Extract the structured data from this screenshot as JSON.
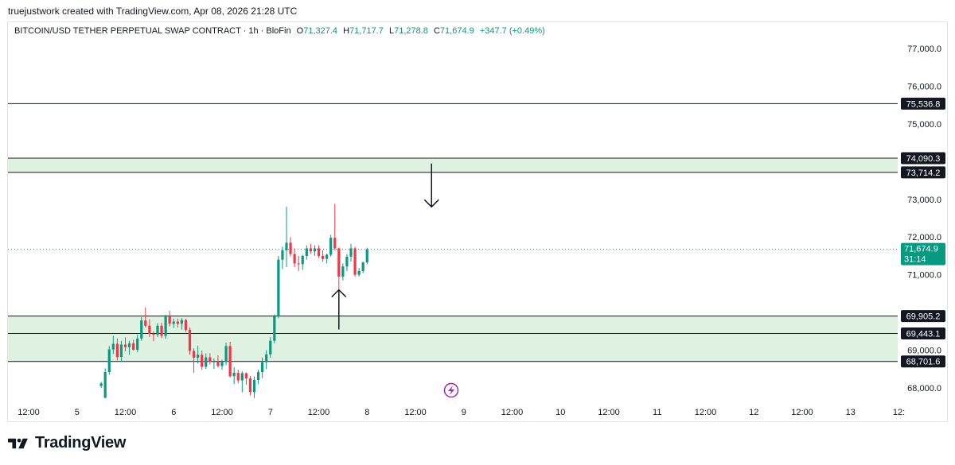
{
  "header": {
    "attribution": "truejustwork created with TradingView.com, Apr 08, 2026 21:28 UTC"
  },
  "legend": {
    "symbol": "BITCOIN/USD TETHER PERPETUAL SWAP CONTRACT · 1h · BloFin",
    "o_label": "O",
    "o_value": "71,327.4",
    "h_label": "H",
    "h_value": "71,717.7",
    "l_label": "L",
    "l_value": "71,278.8",
    "c_label": "C",
    "c_value": "71,674.9",
    "change": "+347.7 (+0.49%)"
  },
  "brand": {
    "name": "TradingView"
  },
  "colors": {
    "up": "#089981",
    "down": "#f23645",
    "zone": "#dff2e1",
    "line": "#131722",
    "accent": "#9c27b0"
  },
  "icons": {
    "replay": "flash-icon",
    "logo": "tradingview-logo-icon"
  },
  "chart_data": {
    "type": "candlestick",
    "ylim": [
      67600,
      77700
    ],
    "y_ticks": [
      "77,000.0",
      "76,000.0",
      "75,000.0",
      "73,000.0",
      "72,000.0",
      "71,000.0",
      "69,000.0",
      "68,000.0"
    ],
    "y_tick_values": [
      77000,
      76000,
      75000,
      73000,
      72000,
      71000,
      69000,
      68000
    ],
    "x_tick_labels": [
      "12:00",
      "5",
      "12:00",
      "6",
      "12:00",
      "7",
      "12:00",
      "8",
      "12:00",
      "9",
      "12:00",
      "10",
      "12:00",
      "11",
      "12:00",
      "12",
      "12:00",
      "13",
      "12:"
    ],
    "levels": [
      {
        "label": "75,536.8",
        "value": 75536.8
      },
      {
        "label": "74,090.3",
        "value": 74090.3
      },
      {
        "label": "73,714.2",
        "value": 73714.2
      },
      {
        "label": "69,905.2",
        "value": 69905.2
      },
      {
        "label": "69,443.1",
        "value": 69443.1
      },
      {
        "label": "68,701.6",
        "value": 68701.6
      }
    ],
    "zones": [
      {
        "from": 73714.2,
        "to": 74090.3
      },
      {
        "from": 68701.6,
        "to": 69905.2
      }
    ],
    "last_price": {
      "label": "71,674.9",
      "value": 71674.9,
      "countdown": "31:14"
    },
    "annotations": [
      {
        "type": "arrow-down",
        "hour": 100,
        "from": 73950,
        "to": 72800
      },
      {
        "type": "arrow-up",
        "hour": 77,
        "from": 69550,
        "to": 70600
      }
    ],
    "first_candle_hour": 18,
    "candles": [
      [
        68050,
        68160,
        68000,
        68120
      ],
      [
        67740,
        68520,
        67720,
        68420
      ],
      [
        68420,
        69110,
        68350,
        69020
      ],
      [
        69020,
        69380,
        68900,
        69170
      ],
      [
        69170,
        69310,
        68730,
        68820
      ],
      [
        68820,
        69250,
        68700,
        69150
      ],
      [
        69150,
        69340,
        68970,
        69080
      ],
      [
        69080,
        69250,
        68880,
        69180
      ],
      [
        69180,
        69280,
        68990,
        69010
      ],
      [
        69010,
        69410,
        68950,
        69310
      ],
      [
        69310,
        69880,
        69250,
        69790
      ],
      [
        69790,
        70130,
        69600,
        69650
      ],
      [
        69650,
        69820,
        69350,
        69430
      ],
      [
        69430,
        69500,
        69240,
        69410
      ],
      [
        69410,
        69720,
        69350,
        69650
      ],
      [
        69650,
        69730,
        69320,
        69380
      ],
      [
        69380,
        69940,
        69300,
        69890
      ],
      [
        69890,
        70040,
        69630,
        69700
      ],
      [
        69700,
        69840,
        69590,
        69760
      ],
      [
        69760,
        69840,
        69600,
        69700
      ],
      [
        69700,
        69850,
        69550,
        69800
      ],
      [
        69800,
        69830,
        69480,
        69540
      ],
      [
        69540,
        69600,
        68880,
        68980
      ],
      [
        68980,
        69050,
        68400,
        68800
      ],
      [
        68800,
        69120,
        68650,
        68880
      ],
      [
        68880,
        68990,
        68480,
        68560
      ],
      [
        68560,
        68920,
        68500,
        68810
      ],
      [
        68810,
        68920,
        68620,
        68690
      ],
      [
        68690,
        68780,
        68500,
        68700
      ],
      [
        68700,
        68860,
        68540,
        68580
      ],
      [
        68580,
        68750,
        68480,
        68690
      ],
      [
        68690,
        69200,
        68600,
        69110
      ],
      [
        69110,
        69220,
        68280,
        68310
      ],
      [
        68310,
        68550,
        68100,
        68400
      ],
      [
        68400,
        68480,
        68120,
        68200
      ],
      [
        68200,
        68440,
        67880,
        68390
      ],
      [
        68390,
        68410,
        68080,
        68250
      ],
      [
        68250,
        68320,
        67800,
        67890
      ],
      [
        67890,
        68300,
        67730,
        68210
      ],
      [
        68210,
        68480,
        68100,
        68420
      ],
      [
        68420,
        68800,
        68260,
        68680
      ],
      [
        68680,
        69000,
        68500,
        68890
      ],
      [
        68890,
        69350,
        68800,
        69250
      ],
      [
        69250,
        69950,
        69180,
        69900
      ],
      [
        69900,
        71500,
        69850,
        71400
      ],
      [
        71400,
        71750,
        71150,
        71650
      ],
      [
        71650,
        72800,
        71200,
        71850
      ],
      [
        71850,
        72000,
        71480,
        71550
      ],
      [
        71550,
        71700,
        71200,
        71300
      ],
      [
        71300,
        71500,
        71100,
        71280
      ],
      [
        71280,
        71530,
        71130,
        71500
      ],
      [
        71500,
        71780,
        71400,
        71700
      ],
      [
        71700,
        71820,
        71550,
        71620
      ],
      [
        71620,
        71780,
        71500,
        71700
      ],
      [
        71700,
        71780,
        71450,
        71500
      ],
      [
        71500,
        71650,
        71350,
        71420
      ],
      [
        71420,
        71560,
        71300,
        71530
      ],
      [
        71530,
        72060,
        71480,
        71980
      ],
      [
        71980,
        72880,
        71650,
        71700
      ],
      [
        71700,
        71720,
        70560,
        70950
      ],
      [
        70950,
        71300,
        70850,
        71220
      ],
      [
        71220,
        71550,
        71100,
        71480
      ],
      [
        71480,
        71820,
        71350,
        71700
      ],
      [
        71700,
        71740,
        70950,
        71000
      ],
      [
        71000,
        71180,
        70950,
        71100
      ],
      [
        71100,
        71350,
        71040,
        71327
      ],
      [
        71327,
        71718,
        71279,
        71675
      ]
    ]
  }
}
